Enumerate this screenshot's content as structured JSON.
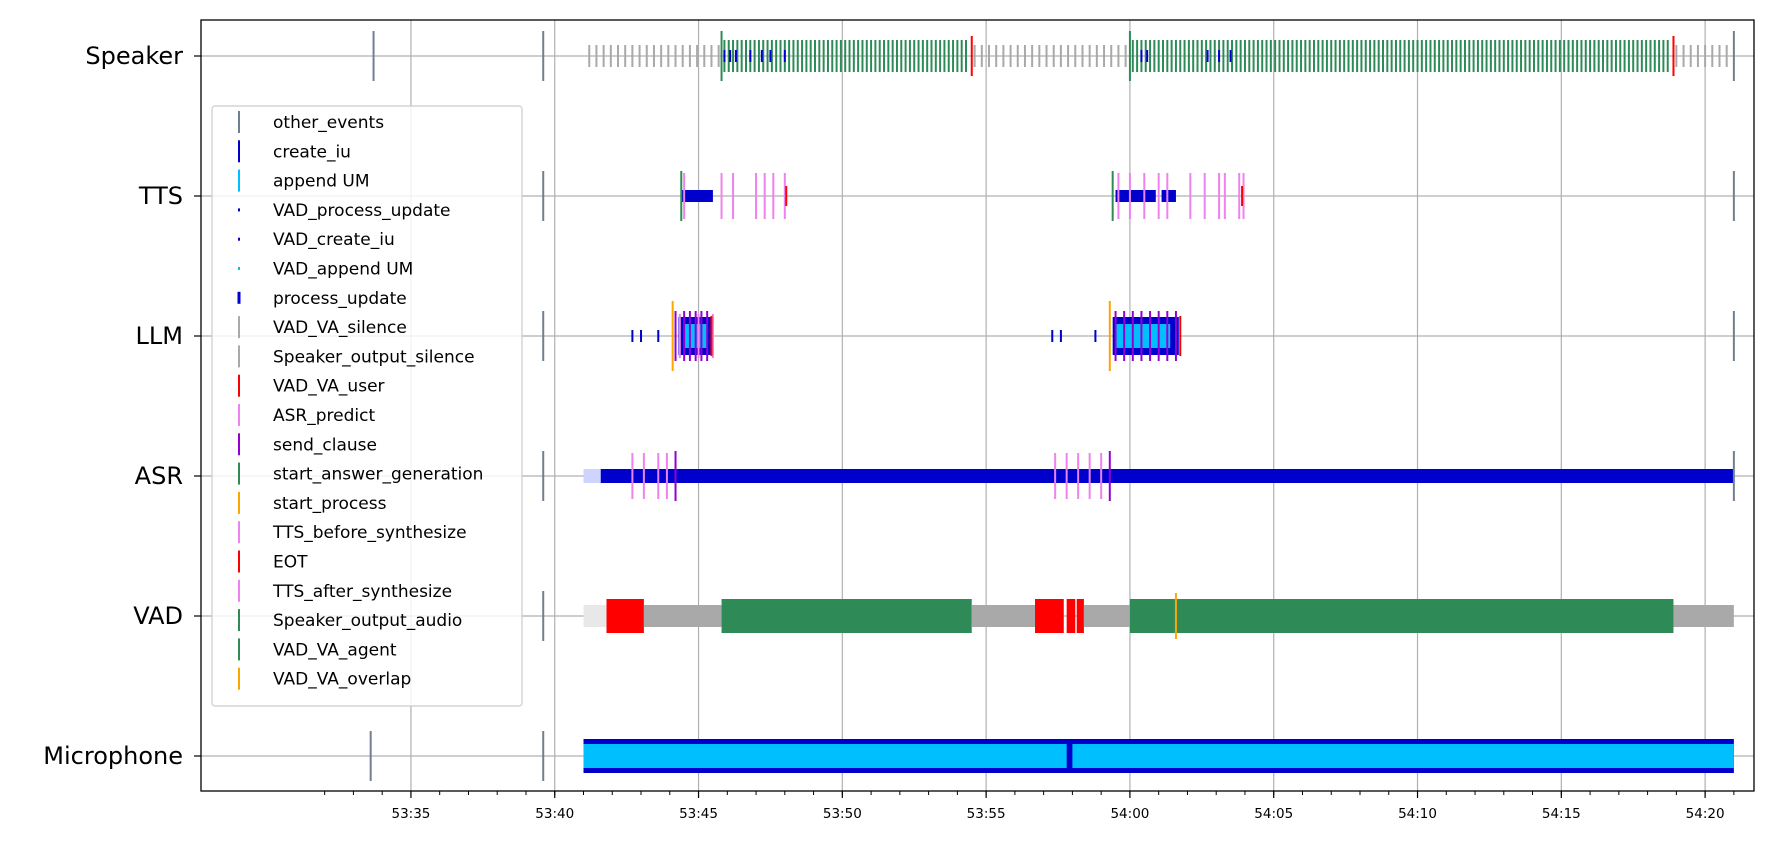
{
  "chart_data": {
    "type": "event-timeline",
    "title": "",
    "xlabel": "",
    "ylabel": "",
    "x_unit": "seconds (mm:ss ticks)",
    "xlim": [
      27.7,
      81.7
    ],
    "x_ticks": [
      {
        "value": 35,
        "label": "53:35"
      },
      {
        "value": 40,
        "label": "53:40"
      },
      {
        "value": 45,
        "label": "53:45"
      },
      {
        "value": 50,
        "label": "53:50"
      },
      {
        "value": 55,
        "label": "53:55"
      },
      {
        "value": 60,
        "label": "54:00"
      },
      {
        "value": 65,
        "label": "54:05"
      },
      {
        "value": 70,
        "label": "54:10"
      },
      {
        "value": 75,
        "label": "54:15"
      },
      {
        "value": 80,
        "label": "54:20"
      }
    ],
    "grid": true,
    "lanes": [
      "Microphone",
      "VAD",
      "ASR",
      "LLM",
      "TTS",
      "Speaker"
    ],
    "legend_placement": "upper-left",
    "legend": [
      {
        "label": "other_events",
        "color": "#708090"
      },
      {
        "label": "create_iu",
        "color": "#0000cd"
      },
      {
        "label": "append UM",
        "color": "#00bfff"
      },
      {
        "label": "VAD_process_update",
        "color": "#0000cd"
      },
      {
        "label": "VAD_create_iu",
        "color": "#0000cd"
      },
      {
        "label": "VAD_append UM",
        "color": "#00bfff"
      },
      {
        "label": "process_update",
        "color": "#0000cd"
      },
      {
        "label": "VAD_VA_silence",
        "color": "#a9a9a9"
      },
      {
        "label": "Speaker_output_silence",
        "color": "#a9a9a9"
      },
      {
        "label": "VAD_VA_user",
        "color": "#ff0000"
      },
      {
        "label": "ASR_predict",
        "color": "#ee82ee"
      },
      {
        "label": "send_clause",
        "color": "#9400d3"
      },
      {
        "label": "start_answer_generation",
        "color": "#2e8b57"
      },
      {
        "label": "start_process",
        "color": "#ffa500"
      },
      {
        "label": "TTS_before_synthesize",
        "color": "#ee82ee"
      },
      {
        "label": "EOT",
        "color": "#ff0000"
      },
      {
        "label": "TTS_after_synthesize",
        "color": "#ee82ee"
      },
      {
        "label": "Speaker_output_audio",
        "color": "#2e8b57"
      },
      {
        "label": "VAD_VA_agent",
        "color": "#2e8b57"
      },
      {
        "label": "VAD_VA_overlap",
        "color": "#ffa500"
      }
    ],
    "intervals": {
      "Microphone": [
        {
          "event": "create_iu",
          "color": "#0000cd",
          "start": 41.0,
          "end": 81.0,
          "thickness": 34
        },
        {
          "event": "append UM",
          "color": "#00bfff",
          "start": 41.0,
          "end": 57.8,
          "thickness": 24
        },
        {
          "event": "append UM",
          "color": "#00bfff",
          "start": 58.0,
          "end": 81.0,
          "thickness": 24
        }
      ],
      "VAD": [
        {
          "event": "VAD_VA_silence",
          "color": "#e8e8e8",
          "start": 41.0,
          "end": 41.8,
          "thickness": 22
        },
        {
          "event": "VAD_VA_user",
          "color": "#ff0000",
          "start": 41.8,
          "end": 43.1,
          "thickness": 34
        },
        {
          "event": "VAD_VA_silence",
          "color": "#a9a9a9",
          "start": 43.1,
          "end": 45.8,
          "thickness": 22
        },
        {
          "event": "VAD_VA_agent",
          "color": "#2e8b57",
          "start": 45.8,
          "end": 54.5,
          "thickness": 34
        },
        {
          "event": "VAD_VA_silence",
          "color": "#a9a9a9",
          "start": 54.5,
          "end": 56.7,
          "thickness": 22
        },
        {
          "event": "VAD_VA_user",
          "color": "#ff0000",
          "start": 56.7,
          "end": 57.7,
          "thickness": 34
        },
        {
          "event": "VAD_VA_user",
          "color": "#ff0000",
          "start": 57.8,
          "end": 58.1,
          "thickness": 34
        },
        {
          "event": "VAD_VA_user",
          "color": "#ff0000",
          "start": 58.15,
          "end": 58.4,
          "thickness": 34
        },
        {
          "event": "VAD_VA_silence",
          "color": "#a9a9a9",
          "start": 58.4,
          "end": 60.0,
          "thickness": 22
        },
        {
          "event": "VAD_VA_agent",
          "color": "#2e8b57",
          "start": 60.0,
          "end": 78.9,
          "thickness": 34
        },
        {
          "event": "VAD_VA_silence",
          "color": "#a9a9a9",
          "start": 78.9,
          "end": 81.0,
          "thickness": 22
        }
      ],
      "ASR": [
        {
          "event": "create_iu",
          "color": "#0000cd",
          "start": 41.0,
          "end": 81.0,
          "thickness": 14
        },
        {
          "event": "VAD_append UM",
          "color": "#cfd4ff",
          "start": 41.0,
          "end": 41.6,
          "thickness": 14
        }
      ],
      "LLM": [
        {
          "event": "create_iu",
          "color": "#0000cd",
          "start": 44.3,
          "end": 45.5,
          "thickness": 38
        },
        {
          "event": "append UM",
          "color": "#00bfff",
          "start": 44.5,
          "end": 45.3,
          "thickness": 24
        },
        {
          "event": "create_iu",
          "color": "#0000cd",
          "start": 59.4,
          "end": 61.7,
          "thickness": 38
        },
        {
          "event": "append UM",
          "color": "#00bfff",
          "start": 59.5,
          "end": 61.4,
          "thickness": 24
        }
      ],
      "TTS": [
        {
          "event": "create_iu",
          "color": "#0000cd",
          "start": 44.4,
          "end": 45.5,
          "thickness": 12
        },
        {
          "event": "create_iu",
          "color": "#0000cd",
          "start": 59.5,
          "end": 60.9,
          "thickness": 12
        },
        {
          "event": "create_iu",
          "color": "#0000cd",
          "start": 61.1,
          "end": 61.6,
          "thickness": 12
        }
      ]
    },
    "point_events": {
      "Speaker": [
        {
          "event": "other_events",
          "color": "#708090",
          "times": [
            33.7,
            39.6,
            81.0
          ],
          "length": 50
        },
        {
          "event": "Speaker_output_silence",
          "color": "#a9a9a9",
          "ranges": [
            [
              41.2,
              45.7,
              0.25
            ],
            [
              54.6,
              59.9,
              0.25
            ],
            [
              79.0,
              80.9,
              0.25
            ]
          ],
          "length": 22
        },
        {
          "event": "Speaker_output_audio",
          "color": "#2e8b57",
          "ranges": [
            [
              45.9,
              54.4,
              0.15
            ],
            [
              60.1,
              78.8,
              0.15
            ]
          ],
          "length": 32
        },
        {
          "event": "start_answer_generation",
          "color": "#2e8b57",
          "times": [
            45.8,
            60.0
          ],
          "length": 50
        },
        {
          "event": "create_iu",
          "color": "#0000cd",
          "times": [
            45.9,
            46.1,
            46.3,
            46.8,
            47.2,
            47.5,
            48.0,
            60.4,
            60.6,
            62.7,
            63.1,
            63.5
          ],
          "length": 12
        },
        {
          "event": "EOT",
          "color": "#ff0000",
          "times": [
            54.5,
            78.9
          ],
          "length": 40
        }
      ],
      "TTS": [
        {
          "event": "other_events",
          "color": "#708090",
          "times": [
            39.6,
            81.0
          ],
          "length": 50
        },
        {
          "event": "start_answer_generation",
          "color": "#2e8b57",
          "times": [
            44.4,
            59.4
          ],
          "length": 50
        },
        {
          "event": "TTS_before_synthesize",
          "color": "#ee82ee",
          "times": [
            44.5,
            45.8,
            46.2,
            47.0,
            47.3,
            47.6,
            48.0,
            59.6,
            60.0,
            60.5,
            61.0,
            61.3,
            62.1,
            62.6,
            63.1,
            63.3,
            63.8,
            63.95
          ],
          "length": 46
        },
        {
          "event": "EOT",
          "color": "#ff0000",
          "times": [
            48.05,
            63.9
          ],
          "length": 20
        }
      ],
      "LLM": [
        {
          "event": "other_events",
          "color": "#708090",
          "times": [
            39.6,
            81.0
          ],
          "length": 50
        },
        {
          "event": "process_update",
          "color": "#0000cd",
          "times": [
            42.7,
            43.0,
            43.6,
            57.3,
            57.6,
            58.8
          ],
          "length": 12
        },
        {
          "event": "start_process",
          "color": "#ffa500",
          "times": [
            44.1,
            59.3
          ],
          "length": 70
        },
        {
          "event": "send_clause",
          "color": "#9400d3",
          "times": [
            44.2,
            44.5,
            44.7,
            44.9,
            45.1,
            45.3,
            59.5,
            59.8,
            60.1,
            60.4,
            60.7,
            61.0,
            61.3,
            61.6
          ],
          "length": 50
        },
        {
          "event": "ASR_predict",
          "color": "#ee82ee",
          "times": [
            44.35,
            45.0,
            45.5
          ],
          "length": 44
        },
        {
          "event": "EOT",
          "color": "#ff0000",
          "times": [
            45.45,
            61.75
          ],
          "length": 40
        }
      ],
      "ASR": [
        {
          "event": "other_events",
          "color": "#708090",
          "times": [
            39.6,
            81.0
          ],
          "length": 50
        },
        {
          "event": "ASR_predict",
          "color": "#ee82ee",
          "times": [
            42.7,
            43.1,
            43.6,
            43.9,
            57.4,
            57.8,
            58.2,
            58.6,
            59.0
          ],
          "length": 46
        },
        {
          "event": "send_clause",
          "color": "#9400d3",
          "times": [
            44.2,
            59.3
          ],
          "length": 50
        }
      ],
      "VAD": [
        {
          "event": "other_events",
          "color": "#708090",
          "times": [
            39.6
          ],
          "length": 50
        },
        {
          "event": "VAD_VA_overlap",
          "color": "#ffa500",
          "times": [
            61.6
          ],
          "length": 46
        }
      ],
      "Microphone": [
        {
          "event": "other_events",
          "color": "#708090",
          "times": [
            33.6,
            39.6
          ],
          "length": 50
        }
      ]
    }
  }
}
